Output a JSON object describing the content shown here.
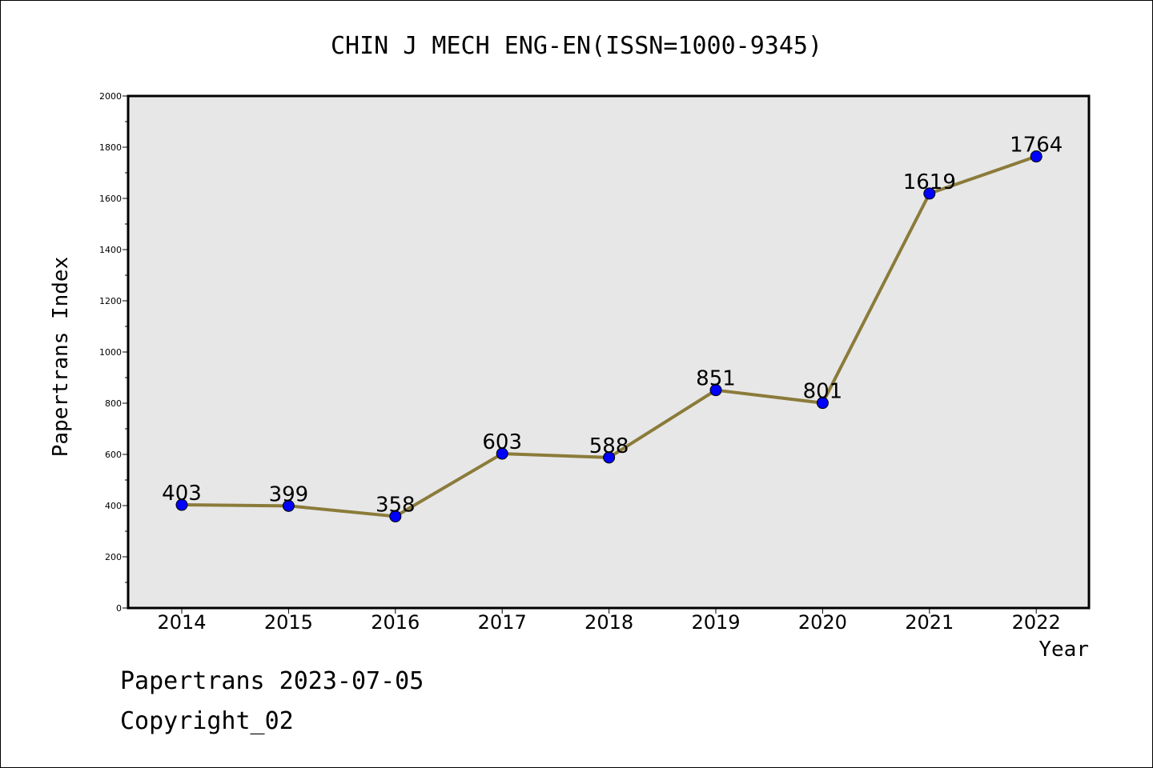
{
  "chart_data": {
    "type": "line",
    "title": "CHIN J MECH ENG-EN(ISSN=1000-9345)",
    "xlabel": "Year",
    "ylabel": "Papertrans Index",
    "categories": [
      "2014",
      "2015",
      "2016",
      "2017",
      "2018",
      "2019",
      "2020",
      "2021",
      "2022"
    ],
    "values": [
      403,
      399,
      358,
      603,
      588,
      851,
      801,
      1619,
      1764
    ],
    "data_labels": [
      "403",
      "399",
      "358",
      "603",
      "588",
      "851",
      "801",
      "1619",
      "1764"
    ],
    "ylim": [
      0,
      2000
    ],
    "yticks": [
      "0",
      "200",
      "400",
      "600",
      "800",
      "1000",
      "1200",
      "1400",
      "1600",
      "1800",
      "2000"
    ],
    "grid": false,
    "colors": {
      "line": "#8b7b3a",
      "marker": "#0000ff",
      "plot_background": "#e7e7e7"
    }
  },
  "footer": {
    "date_line": "Papertrans 2023-07-05",
    "copyright": "Copyright_02"
  }
}
